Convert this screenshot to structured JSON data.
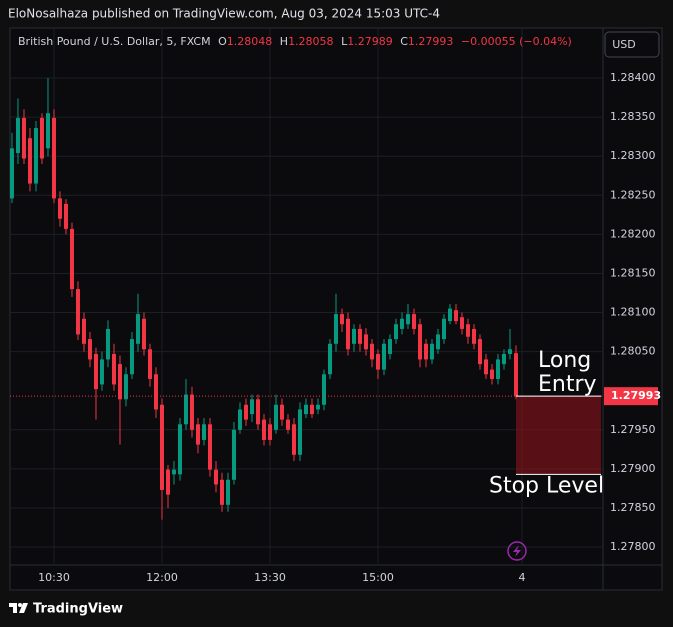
{
  "header": "EloNosalhaza published on TradingView.com, Aug 03, 2024 15:03 UTC-4",
  "footer": "TradingView",
  "chart_data": {
    "type": "candlestick",
    "symbol": "British Pound / U.S. Dollar, 5, FXCM",
    "ohlc_labels": {
      "open": "O",
      "high": "H",
      "low": "L",
      "close": "C"
    },
    "last": {
      "open": 1.28048,
      "high": 1.28058,
      "low": 1.27989,
      "close": 1.27993,
      "change": "−0.00055 (−0.04%)"
    },
    "currency": "USD",
    "up_color": "#089981",
    "down_color": "#f23645",
    "open": [
      1.28246,
      1.28304,
      1.28349,
      1.28323,
      1.28265,
      1.28349,
      1.2831,
      1.28349,
      1.28246,
      1.28239,
      1.28207,
      1.2813,
      1.28092,
      1.28066,
      1.28047,
      1.28008,
      1.2804,
      1.28047,
      1.28034,
      1.27989,
      1.28021,
      1.2806,
      1.28092,
      1.28053,
      1.28021,
      1.27982,
      1.27899,
      1.27893,
      1.27893,
      1.27957,
      1.27995,
      1.27957,
      1.27937,
      1.27957,
      1.27899,
      1.27886,
      1.27854,
      1.27886,
      1.2795,
      1.27982,
      1.2797,
      1.27989,
      1.27963,
      1.27957,
      1.2795,
      1.27982,
      1.27963,
      1.27957,
      1.27918,
      1.2797,
      1.27982,
      1.27976,
      1.27982,
      1.28021,
      1.2806,
      1.28098,
      1.28092,
      1.2806,
      1.28079,
      1.28072,
      1.2806,
      1.28047,
      1.28027,
      1.28047,
      1.28066,
      1.28079,
      1.28085,
      1.28098,
      1.28085,
      1.2806,
      1.2804,
      1.28053,
      1.28066,
      1.28089,
      1.28103,
      1.28094,
      1.28085,
      1.28079,
      1.28066,
      1.2804,
      1.28027,
      1.28015,
      1.28034,
      1.28047,
      1.28048
    ],
    "high": [
      1.2833,
      1.28374,
      1.2836,
      1.28336,
      1.28345,
      1.28355,
      1.284,
      1.2836,
      1.28255,
      1.28245,
      1.28215,
      1.2814,
      1.281,
      1.28075,
      1.28055,
      1.2805,
      1.2809,
      1.2806,
      1.28045,
      1.2803,
      1.28075,
      1.28124,
      1.281,
      1.2806,
      1.2803,
      1.2799,
      1.27905,
      1.2791,
      1.27965,
      1.28015,
      1.28005,
      1.27965,
      1.27965,
      1.27965,
      1.2791,
      1.27895,
      1.27895,
      1.2796,
      1.27985,
      1.2799,
      1.27995,
      1.27995,
      1.2797,
      1.27965,
      1.27995,
      1.2799,
      1.2797,
      1.27965,
      1.27985,
      1.2799,
      1.2799,
      1.2799,
      1.28027,
      1.28066,
      1.28124,
      1.28105,
      1.281,
      1.28085,
      1.28085,
      1.2808,
      1.28066,
      1.28053,
      1.28066,
      1.28072,
      1.28092,
      1.281,
      1.28111,
      1.28105,
      1.28092,
      1.28066,
      1.28066,
      1.28079,
      1.28098,
      1.28111,
      1.28111,
      1.281,
      1.28092,
      1.28085,
      1.28072,
      1.28047,
      1.28034,
      1.28047,
      1.28053,
      1.28079,
      1.28058
    ],
    "low": [
      1.2824,
      1.2829,
      1.2829,
      1.28255,
      1.28255,
      1.2829,
      1.283,
      1.2824,
      1.2821,
      1.282,
      1.2812,
      1.28065,
      1.2805,
      1.2803,
      1.27963,
      1.28,
      1.2803,
      1.28,
      1.27931,
      1.2798,
      1.28015,
      1.2805,
      1.28045,
      1.28005,
      1.27965,
      1.27835,
      1.2785,
      1.2788,
      1.27885,
      1.2795,
      1.2794,
      1.2792,
      1.2793,
      1.2789,
      1.2787,
      1.27845,
      1.27845,
      1.2788,
      1.27945,
      1.27955,
      1.2796,
      1.2795,
      1.2793,
      1.2793,
      1.27945,
      1.27955,
      1.27945,
      1.2791,
      1.2791,
      1.27965,
      1.27965,
      1.2797,
      1.27975,
      1.28015,
      1.2805,
      1.28075,
      1.28045,
      1.2805,
      1.2805,
      1.28045,
      1.2803,
      1.28015,
      1.2802,
      1.2804,
      1.2806,
      1.28072,
      1.28079,
      1.28072,
      1.2803,
      1.2803,
      1.28034,
      1.28047,
      1.2806,
      1.28085,
      1.28085,
      1.28072,
      1.2806,
      1.28053,
      1.28027,
      1.28015,
      1.28008,
      1.28008,
      1.28027,
      1.2804,
      1.27989
    ],
    "close": [
      1.2831,
      1.28349,
      1.28297,
      1.28265,
      1.28336,
      1.28297,
      1.28355,
      1.28246,
      1.2822,
      1.28207,
      1.2813,
      1.28072,
      1.2806,
      1.2804,
      1.28002,
      1.2804,
      1.28079,
      1.28008,
      1.27989,
      1.28021,
      1.28066,
      1.28098,
      1.28053,
      1.28015,
      1.27976,
      1.27873,
      1.27867,
      1.27899,
      1.27957,
      1.27995,
      1.2795,
      1.27931,
      1.27957,
      1.27899,
      1.2788,
      1.27854,
      1.27886,
      1.2795,
      1.27976,
      1.27963,
      1.27989,
      1.27957,
      1.27937,
      1.27937,
      1.27982,
      1.27963,
      1.2795,
      1.27918,
      1.27976,
      1.27982,
      1.2797,
      1.27982,
      1.28021,
      1.2806,
      1.28098,
      1.28085,
      1.28053,
      1.28079,
      1.2806,
      1.28053,
      1.2804,
      1.28027,
      1.2806,
      1.28066,
      1.28085,
      1.28092,
      1.28098,
      1.28079,
      1.2804,
      1.2804,
      1.2806,
      1.28072,
      1.28092,
      1.28105,
      1.28089,
      1.28079,
      1.28069,
      1.2806,
      1.28034,
      1.28021,
      1.28015,
      1.2804,
      1.28047,
      1.28053,
      1.27993
    ],
    "xlim": [
      -0.33,
      98.5
    ],
    "xticks": [
      {
        "value": 7,
        "label": "10:30"
      },
      {
        "value": 25,
        "label": "12:00"
      },
      {
        "value": 43,
        "label": "13:30"
      },
      {
        "value": 61,
        "label": "15:00"
      },
      {
        "value": 85,
        "label": "4"
      }
    ],
    "ylim": [
      1.27777,
      1.28464
    ],
    "yticks": [
      {
        "value": 1.278,
        "label": "1.27800"
      },
      {
        "value": 1.2785,
        "label": "1.27850"
      },
      {
        "value": 1.279,
        "label": "1.27900"
      },
      {
        "value": 1.2795,
        "label": "1.27950"
      },
      {
        "value": 1.2805,
        "label": "1.28050"
      },
      {
        "value": 1.281,
        "label": "1.28100"
      },
      {
        "value": 1.2815,
        "label": "1.28150"
      },
      {
        "value": 1.282,
        "label": "1.28200"
      },
      {
        "value": 1.2825,
        "label": "1.28250"
      },
      {
        "value": 1.283,
        "label": "1.28300"
      },
      {
        "value": 1.2835,
        "label": "1.28350"
      },
      {
        "value": 1.284,
        "label": "1.28400"
      }
    ],
    "grid": true,
    "position": {
      "entry": 1.27993,
      "stop": 1.27893,
      "entry_label": [
        "Long",
        "Entry"
      ],
      "stop_label": "Stop Level"
    }
  }
}
